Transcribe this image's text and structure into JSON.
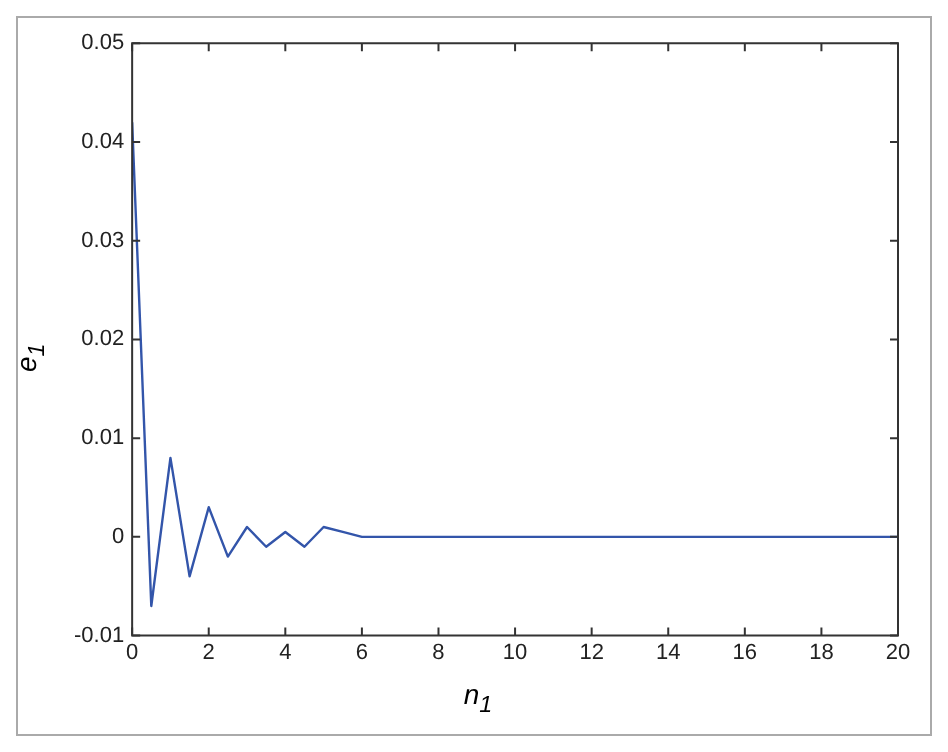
{
  "chart_data": {
    "type": "line",
    "xlabel": "n$_{1}$",
    "ylabel": "e$_{1}$",
    "x": [
      0,
      0.5,
      1,
      1.5,
      2,
      2.5,
      3,
      3.5,
      4,
      4.5,
      5,
      5.5,
      6,
      20
    ],
    "series": [
      {
        "color": "#3355aa",
        "values": [
          0.042,
          -0.007,
          0.008,
          -0.004,
          0.003,
          -0.002,
          0.001,
          -0.001,
          0.0005,
          -0.001,
          0.001,
          0.0005,
          0,
          0
        ]
      }
    ],
    "xlim": [
      0,
      20
    ],
    "xticks": [
      0,
      2,
      4,
      6,
      8,
      10,
      12,
      14,
      16,
      18,
      20
    ],
    "ylim": [
      -0.01,
      0.05
    ],
    "yticks": [
      -0.01,
      0,
      0.01,
      0.02,
      0.03,
      0.04,
      0.05
    ],
    "grid": false,
    "legend": false,
    "marker": "none",
    "line_style": "solid"
  }
}
